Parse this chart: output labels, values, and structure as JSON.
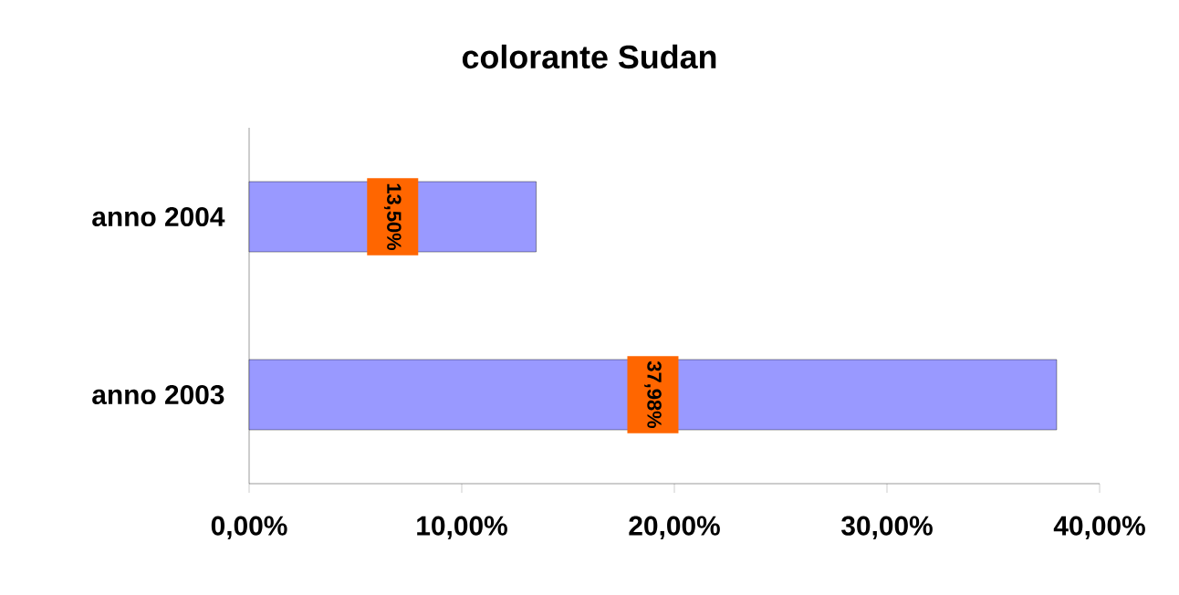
{
  "chart_data": {
    "type": "bar",
    "orientation": "horizontal",
    "title": "colorante Sudan",
    "categories": [
      "anno 2004",
      "anno 2003"
    ],
    "values": [
      13.5,
      37.98
    ],
    "color": "#9999ff",
    "value_labels": [
      "13,50%",
      "37,98%"
    ],
    "xlim": [
      0,
      40
    ],
    "xticks": [
      {
        "value": 0,
        "label": "0,00%"
      },
      {
        "value": 10,
        "label": "10,00%"
      },
      {
        "value": 20,
        "label": "20,00%"
      },
      {
        "value": 30,
        "label": "30,00%"
      },
      {
        "value": 40,
        "label": "40,00%"
      }
    ]
  }
}
